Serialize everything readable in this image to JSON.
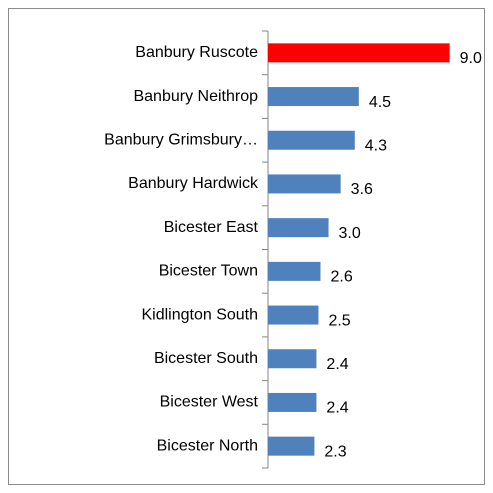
{
  "chart_data": {
    "type": "barh",
    "categories": [
      "Banbury Ruscote",
      "Banbury Neithrop",
      "Banbury Grimsbury…",
      "Banbury Hardwick",
      "Bicester East",
      "Bicester Town",
      "Kidlington South",
      "Bicester South",
      "Bicester West",
      "Bicester North"
    ],
    "values": [
      9.0,
      4.5,
      4.3,
      3.6,
      3.0,
      2.6,
      2.5,
      2.4,
      2.4,
      2.3
    ],
    "value_labels": [
      "9.0",
      "4.5",
      "4.3",
      "3.6",
      "3.0",
      "2.6",
      "2.5",
      "2.4",
      "2.4",
      "2.3"
    ],
    "colors": [
      "#ff0000",
      "#4f81bd",
      "#4f81bd",
      "#4f81bd",
      "#4f81bd",
      "#4f81bd",
      "#4f81bd",
      "#4f81bd",
      "#4f81bd",
      "#4f81bd"
    ],
    "xlim": [
      0,
      11
    ]
  }
}
